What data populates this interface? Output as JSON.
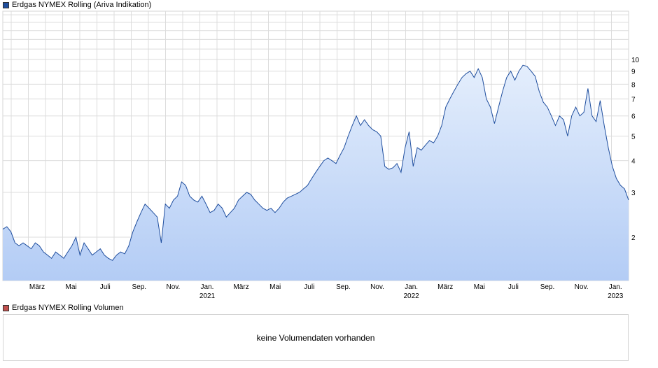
{
  "price_legend": {
    "label": "Erdgas NYMEX Rolling (Ariva Indikation)",
    "color": "#1f4e9e"
  },
  "volume_legend": {
    "label": "Erdgas NYMEX Rolling Volumen",
    "color": "#c0504d"
  },
  "volume_panel": {
    "message": "keine Volumendaten vorhanden"
  },
  "chart_data": {
    "type": "area",
    "scale": "log",
    "grid": true,
    "ylim": [
      1.35,
      15.5
    ],
    "yticks": [
      2,
      3,
      4,
      5,
      6,
      7,
      8,
      9,
      10
    ],
    "x_month_labels": [
      "März",
      "Mai",
      "Juli",
      "Sep.",
      "Nov.",
      "Jan.",
      "März",
      "Mai",
      "Juli",
      "Sep.",
      "Nov.",
      "Jan.",
      "März",
      "Mai",
      "Juli",
      "Sep.",
      "Nov.",
      "Jan."
    ],
    "x_year_labels": [
      "2021",
      "2022",
      "2023"
    ],
    "line_color": "#1f4e9e",
    "fill_top_color": "#e4eefc",
    "fill_bottom_color": "#b3ccf5",
    "series": [
      {
        "values": [
          2.15,
          2.2,
          2.1,
          1.9,
          1.85,
          1.9,
          1.85,
          1.8,
          1.9,
          1.85,
          1.75,
          1.7,
          1.65,
          1.75,
          1.7,
          1.65,
          1.75,
          1.85,
          2.0,
          1.7,
          1.9,
          1.8,
          1.7,
          1.75,
          1.8,
          1.7,
          1.65,
          1.62,
          1.7,
          1.75,
          1.72,
          1.85,
          2.1,
          2.3,
          2.5,
          2.7,
          2.6,
          2.5,
          2.4,
          1.9,
          2.7,
          2.6,
          2.8,
          2.9,
          3.3,
          3.2,
          2.9,
          2.8,
          2.75,
          2.9,
          2.7,
          2.5,
          2.55,
          2.7,
          2.6,
          2.4,
          2.5,
          2.6,
          2.8,
          2.9,
          3.0,
          2.95,
          2.8,
          2.7,
          2.6,
          2.55,
          2.6,
          2.5,
          2.6,
          2.75,
          2.85,
          2.9,
          2.95,
          3.0,
          3.1,
          3.2,
          3.4,
          3.6,
          3.8,
          4.0,
          4.1,
          4.0,
          3.9,
          4.2,
          4.5,
          5.0,
          5.5,
          6.0,
          5.5,
          5.8,
          5.5,
          5.3,
          5.2,
          5.0,
          3.8,
          3.7,
          3.75,
          3.9,
          3.6,
          4.5,
          5.2,
          3.8,
          4.5,
          4.4,
          4.6,
          4.8,
          4.7,
          5.0,
          5.5,
          6.5,
          7.0,
          7.5,
          8.0,
          8.5,
          8.8,
          9.0,
          8.5,
          9.2,
          8.5,
          7.0,
          6.5,
          5.6,
          6.5,
          7.5,
          8.5,
          9.0,
          8.3,
          9.0,
          9.5,
          9.4,
          9.0,
          8.6,
          7.5,
          6.8,
          6.5,
          6.0,
          5.5,
          6.0,
          5.8,
          5.0,
          6.0,
          6.5,
          6.0,
          6.2,
          7.7,
          6.0,
          5.7,
          6.9,
          5.5,
          4.5,
          3.8,
          3.4,
          3.2,
          3.1,
          2.8
        ]
      }
    ]
  }
}
